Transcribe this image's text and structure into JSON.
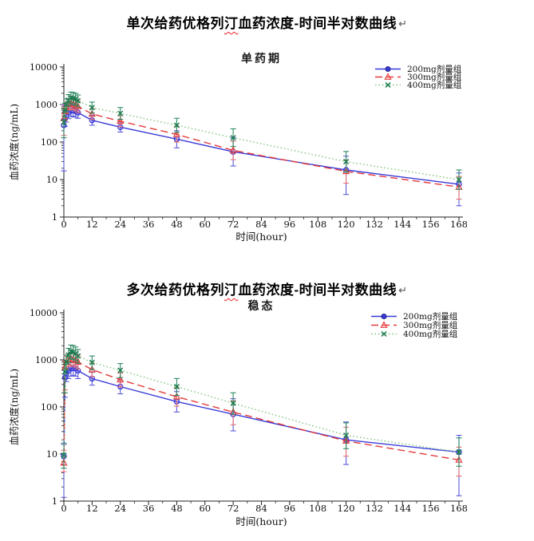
{
  "page": {
    "background": "#ffffff",
    "return_mark": "↵"
  },
  "doc_titles": {
    "title1_prefix": "单次给药优格列",
    "title1_misspelled": "汀",
    "title1_suffix": "血药浓度-时间半对数曲线",
    "title2_prefix": "多次给药优格列",
    "title2_misspelled": "汀",
    "title2_suffix": "血药浓度-时间半对数曲线"
  },
  "chart_data": [
    {
      "type": "line",
      "title": "单药期",
      "xlabel": "时间(hour)",
      "ylabel": "血药浓度(ng/mL)",
      "y_scale": "log10",
      "ylim": [
        1,
        10000
      ],
      "y_ticks": [
        1,
        10,
        100,
        1000,
        10000
      ],
      "xlim": [
        0,
        168
      ],
      "x_ticks": [
        0,
        12,
        24,
        36,
        48,
        60,
        72,
        84,
        96,
        108,
        120,
        132,
        144,
        156,
        168
      ],
      "x_minor_step": 6,
      "grid": false,
      "legend_position": "top-right",
      "x": [
        0,
        0.5,
        1,
        2,
        3,
        4,
        5,
        6,
        12,
        24,
        48,
        72,
        120,
        168
      ],
      "series": [
        {
          "id": "200mg",
          "name": "200mg剂量组",
          "marker": "circle",
          "line": "solid",
          "color": "#3b3bd9",
          "error_color": "#5b5bdc",
          "values": [
            280,
            420,
            520,
            610,
            680,
            700,
            660,
            610,
            380,
            250,
            120,
            55,
            18,
            7.5
          ],
          "err_lo": [
            17,
            260,
            340,
            420,
            470,
            490,
            460,
            430,
            280,
            185,
            70,
            23,
            4,
            2
          ],
          "err_hi": [
            1000,
            650,
            760,
            860,
            950,
            980,
            930,
            850,
            520,
            340,
            200,
            130,
            42,
            15
          ]
        },
        {
          "id": "300mg",
          "name": "300mg剂量组",
          "marker": "triangle",
          "line": "dash",
          "color": "#e43c3c",
          "error_color": "#e87272",
          "values": [
            430,
            650,
            850,
            1000,
            1060,
            1030,
            960,
            890,
            560,
            360,
            160,
            60,
            16.5,
            6.3
          ],
          "err_lo": [
            150,
            430,
            600,
            700,
            760,
            730,
            680,
            620,
            400,
            255,
            100,
            34,
            8,
            3
          ],
          "err_hi": [
            820,
            950,
            1150,
            1380,
            1450,
            1400,
            1320,
            1230,
            780,
            500,
            260,
            105,
            33,
            12
          ]
        },
        {
          "id": "400mg",
          "name": "400mg剂量组",
          "marker": "x",
          "line": "dot",
          "color": "#1c7a4e",
          "line_color": "#85c785",
          "error_color": "#2f8b66",
          "values": [
            340,
            700,
            1000,
            1300,
            1520,
            1480,
            1400,
            1260,
            830,
            580,
            280,
            130,
            30,
            10
          ],
          "err_lo": [
            130,
            460,
            700,
            920,
            1060,
            1030,
            960,
            870,
            590,
            405,
            182,
            76,
            16,
            5.5
          ],
          "err_hi": [
            760,
            1080,
            1430,
            1840,
            2150,
            2080,
            1980,
            1800,
            1160,
            830,
            430,
            225,
            56,
            18
          ]
        }
      ]
    },
    {
      "type": "line",
      "title": "稳态",
      "xlabel": "时间(hour)",
      "ylabel": "血药浓度(ng/mL)",
      "y_scale": "log10",
      "ylim": [
        1,
        10000
      ],
      "y_ticks": [
        1,
        10,
        100,
        1000,
        10000
      ],
      "xlim": [
        0,
        168
      ],
      "x_ticks": [
        0,
        12,
        24,
        36,
        48,
        60,
        72,
        84,
        96,
        108,
        120,
        132,
        144,
        156,
        168
      ],
      "x_minor_step": 6,
      "grid": false,
      "legend_position": "top-right",
      "x": [
        0,
        0.5,
        1,
        2,
        3,
        4,
        5,
        6,
        12,
        24,
        48,
        72,
        120,
        168
      ],
      "series": [
        {
          "id": "200mg",
          "name": "200mg剂量组",
          "marker": "circle",
          "line": "solid",
          "color": "#3b3bd9",
          "error_color": "#5b5bdc",
          "values": [
            9,
            420,
            520,
            590,
            650,
            680,
            650,
            590,
            400,
            270,
            130,
            70,
            20,
            11
          ],
          "err_lo": [
            1.2,
            160,
            345,
            400,
            450,
            470,
            450,
            400,
            290,
            190,
            78,
            31,
            6,
            1.3
          ],
          "err_hi": [
            16,
            610,
            730,
            810,
            880,
            930,
            880,
            810,
            545,
            370,
            212,
            150,
            48,
            25
          ]
        },
        {
          "id": "300mg",
          "name": "300mg剂量组",
          "marker": "triangle",
          "line": "dash",
          "color": "#e43c3c",
          "error_color": "#e87272",
          "values": [
            6.5,
            700,
            900,
            1010,
            1060,
            1030,
            980,
            900,
            620,
            380,
            165,
            78,
            19,
            7.5
          ],
          "err_lo": [
            4.2,
            230,
            650,
            720,
            770,
            740,
            700,
            640,
            440,
            268,
            104,
            42,
            9,
            3.4
          ],
          "err_hi": [
            12,
            950,
            1200,
            1360,
            1430,
            1390,
            1330,
            1230,
            845,
            525,
            258,
            136,
            37,
            14
          ]
        },
        {
          "id": "400mg",
          "name": "400mg剂量组",
          "marker": "x",
          "line": "dot",
          "color": "#1c7a4e",
          "line_color": "#85c785",
          "error_color": "#2f8b66",
          "values": [
            9.5,
            560,
            900,
            1260,
            1520,
            1470,
            1360,
            1210,
            880,
            600,
            270,
            120,
            25,
            11
          ],
          "err_lo": [
            5,
            200,
            625,
            880,
            1060,
            1020,
            950,
            845,
            620,
            420,
            176,
            70,
            13,
            5.5
          ],
          "err_hi": [
            17,
            810,
            1260,
            1760,
            2060,
            2010,
            1870,
            1660,
            1210,
            835,
            402,
            200,
            46,
            22
          ]
        }
      ]
    }
  ]
}
